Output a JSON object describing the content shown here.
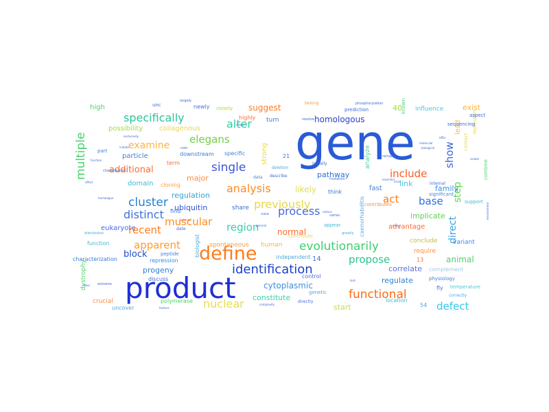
{
  "words": [
    {
      "text": "gene",
      "color": "#2a5bd7"
    },
    {
      "text": "product",
      "color": "#1f2fd6"
    },
    {
      "text": "define",
      "color": "#ff7a1a"
    },
    {
      "text": "identification",
      "color": "#1a3fd0"
    },
    {
      "text": "evolutionarily",
      "color": "#3fcf6f"
    },
    {
      "text": "functional",
      "color": "#ff6a12"
    },
    {
      "text": "specifically",
      "color": "#2cc49a"
    },
    {
      "text": "multiple",
      "color": "#48d16d"
    },
    {
      "text": "elegans",
      "color": "#6fd13f"
    },
    {
      "text": "alter",
      "color": "#2ccf9e"
    },
    {
      "text": "single",
      "color": "#3a56d6"
    },
    {
      "text": "analysis",
      "color": "#ff8a26"
    },
    {
      "text": "process",
      "color": "#4767d9"
    },
    {
      "text": "previously",
      "color": "#e6d84a"
    },
    {
      "text": "cluster",
      "color": "#1f7fd6"
    },
    {
      "text": "distinct",
      "color": "#3d6fe0"
    },
    {
      "text": "muscular",
      "color": "#ff8c1a"
    },
    {
      "text": "region",
      "color": "#34d0b0"
    },
    {
      "text": "recent",
      "color": "#ff7a1a"
    },
    {
      "text": "apparent",
      "color": "#ff9a2e"
    },
    {
      "text": "nuclear",
      "color": "#e8dd4f"
    },
    {
      "text": "propose",
      "color": "#2ec28b"
    },
    {
      "text": "defect",
      "color": "#33c9ea"
    },
    {
      "text": "include",
      "color": "#ff5a1f"
    },
    {
      "text": "act",
      "color": "#ff7a12"
    },
    {
      "text": "base",
      "color": "#2c6fdf"
    },
    {
      "text": "examine",
      "color": "#ffb23d"
    },
    {
      "text": "additional",
      "color": "#ff6b2e"
    },
    {
      "text": "show",
      "color": "#3a6ad8"
    },
    {
      "text": "step",
      "color": "#5ad64a"
    },
    {
      "text": "direct",
      "color": "#3aa2e0"
    },
    {
      "text": "homologous",
      "color": "#2c40c8"
    },
    {
      "text": "suggest",
      "color": "#ff7a26"
    },
    {
      "text": "pathway",
      "color": "#2c6fd6"
    },
    {
      "text": "cytoplasmic",
      "color": "#3c8ee0"
    },
    {
      "text": "regulate",
      "color": "#2f80d0"
    },
    {
      "text": "block",
      "color": "#1f4ccc"
    },
    {
      "text": "progeny",
      "color": "#2b7fd6"
    },
    {
      "text": "animal",
      "color": "#4dd166"
    },
    {
      "text": "correlate",
      "color": "#5c6de0"
    },
    {
      "text": "major",
      "color": "#ff8a3c"
    },
    {
      "text": "regulation",
      "color": "#2fa6cf"
    },
    {
      "text": "ubiquitin",
      "color": "#2a53d0"
    },
    {
      "text": "normal",
      "color": "#ff6a2e"
    },
    {
      "text": "likely",
      "color": "#e0dc5a"
    },
    {
      "text": "link",
      "color": "#45c7d0"
    },
    {
      "text": "implicate",
      "color": "#5dd14e"
    },
    {
      "text": "family",
      "color": "#3c8fe0"
    },
    {
      "text": "exist",
      "color": "#ffb23d"
    },
    {
      "text": "high",
      "color": "#4fd06a"
    },
    {
      "text": "possibility",
      "color": "#9fdc3f"
    },
    {
      "text": "collagenous",
      "color": "#e8d84f"
    },
    {
      "text": "particle",
      "color": "#3f7fd6"
    },
    {
      "text": "domain",
      "color": "#3fb8d6"
    },
    {
      "text": "eukaryote",
      "color": "#4a6ae0"
    },
    {
      "text": "constitute",
      "color": "#3fd0a8"
    },
    {
      "text": "start",
      "color": "#c9d85a"
    },
    {
      "text": "advantage",
      "color": "#ff6a2e"
    },
    {
      "text": "human",
      "color": "#ffb23d"
    },
    {
      "text": "independent",
      "color": "#4aa8e0"
    },
    {
      "text": "spontaneous",
      "color": "#ff9a3c"
    },
    {
      "text": "fast",
      "color": "#3f7fd6"
    },
    {
      "text": "40",
      "color": "#a8d83a"
    },
    {
      "text": "14",
      "color": "#3f6fd6"
    },
    {
      "text": "54",
      "color": "#4aa8e0"
    },
    {
      "text": "21",
      "color": "#3f6fd6"
    },
    {
      "text": "13",
      "color": "#ff6a2e"
    },
    {
      "text": "turn",
      "color": "#3a7ad6"
    },
    {
      "text": "influence",
      "color": "#4ac7d6"
    },
    {
      "text": "lead",
      "color": "#ffb23d"
    },
    {
      "text": "caenorhabditis",
      "color": "#5fa8e0"
    },
    {
      "text": "analyze",
      "color": "#4fcf9a"
    },
    {
      "text": "strong",
      "color": "#e8d84f"
    },
    {
      "text": "share",
      "color": "#3a6ad8"
    },
    {
      "text": "require",
      "color": "#ff8a3c"
    },
    {
      "text": "conclude",
      "color": "#c9b84a"
    },
    {
      "text": "variant",
      "color": "#3f8ae0"
    },
    {
      "text": "complement",
      "color": "#9fc8e0"
    },
    {
      "text": "fly",
      "color": "#4a6ae0"
    },
    {
      "text": "location",
      "color": "#3fb8d6"
    },
    {
      "text": "crucial",
      "color": "#ff8a3c"
    },
    {
      "text": "polymerase",
      "color": "#4fd06a"
    },
    {
      "text": "uncover",
      "color": "#4aa8e0"
    },
    {
      "text": "dystrophy",
      "color": "#4fd06a"
    },
    {
      "text": "characterization",
      "color": "#3a7ad6"
    },
    {
      "text": "function",
      "color": "#3fb8d6"
    },
    {
      "text": "repression",
      "color": "#2f8ae0"
    },
    {
      "text": "discuss",
      "color": "#3a6ad8"
    },
    {
      "text": "biologist",
      "color": "#4aa8e0"
    },
    {
      "text": "peptide",
      "color": "#3f7fd6"
    },
    {
      "text": "cloning",
      "color": "#ff9a3c"
    },
    {
      "text": "term",
      "color": "#ff6a2e"
    },
    {
      "text": "downstream",
      "color": "#3a7ad6"
    },
    {
      "text": "specific",
      "color": "#3f7fd6"
    },
    {
      "text": "newly",
      "color": "#4a6ae0"
    },
    {
      "text": "highly",
      "color": "#ff6a2e"
    },
    {
      "text": "closely",
      "color": "#a8d83a"
    },
    {
      "text": "unc",
      "color": "#3a6ad8"
    },
    {
      "text": "part",
      "color": "#3f7fd6"
    },
    {
      "text": "contribute",
      "color": "#e8d84f"
    },
    {
      "text": "contributes",
      "color": "#ff8a3c"
    },
    {
      "text": "find",
      "color": "#3a6ad8"
    },
    {
      "text": "genetic",
      "color": "#4aa8e0"
    },
    {
      "text": "control",
      "color": "#4a6ae0"
    },
    {
      "text": "appear",
      "color": "#3fb8d6"
    },
    {
      "text": "think",
      "color": "#3f6fd6"
    },
    {
      "text": "physiology",
      "color": "#3f7fd6"
    },
    {
      "text": "temperature",
      "color": "#4ac7d6"
    },
    {
      "text": "support",
      "color": "#3fb8d6"
    },
    {
      "text": "significant",
      "color": "#3f8ae0"
    },
    {
      "text": "internal",
      "color": "#3a6ad8"
    },
    {
      "text": "combine",
      "color": "#4fd06a"
    },
    {
      "text": "dependent",
      "color": "#e8d84f"
    },
    {
      "text": "contact",
      "color": "#e8d84f"
    },
    {
      "text": "sequencing",
      "color": "#3a6ad8"
    },
    {
      "text": "aspect",
      "color": "#3a6ad8"
    },
    {
      "text": "prediction",
      "color": "#3a6ad8"
    },
    {
      "text": "phosphorylation",
      "color": "#3a6ad8"
    },
    {
      "text": "known",
      "color": "#4fd06a"
    },
    {
      "text": "describe",
      "color": "#3a6ad8"
    },
    {
      "text": "data",
      "color": "#3f7fd6"
    },
    {
      "text": "deletion",
      "color": "#4aa8e0"
    },
    {
      "text": "initially",
      "color": "#3a6ad8"
    },
    {
      "text": "belong",
      "color": "#ff9a3c"
    },
    {
      "text": "resolve",
      "color": "#3a6ad8"
    },
    {
      "text": "mutation",
      "color": "#3a6ad8"
    },
    {
      "text": "remain",
      "color": "#3a6ad8"
    },
    {
      "text": "greatly",
      "color": "#4aa8e0"
    },
    {
      "text": "varies",
      "color": "#3a6ad8"
    },
    {
      "text": "largely",
      "color": "#3a6ad8"
    },
    {
      "text": "date",
      "color": "#3a6ad8"
    },
    {
      "text": "lateral",
      "color": "#ff6a2e"
    },
    {
      "text": "coin",
      "color": "#3a6ad8"
    },
    {
      "text": "directly",
      "color": "#4a6ae0"
    },
    {
      "text": "correctly",
      "color": "#4aa8e0"
    },
    {
      "text": "situ",
      "color": "#3a6ad8"
    },
    {
      "text": "homologue",
      "color": "#3a6ad8"
    },
    {
      "text": "distribution",
      "color": "#4aa8e0"
    },
    {
      "text": "characteristic",
      "color": "#3a6ad8"
    },
    {
      "text": "exclusively",
      "color": "#3a6ad8"
    },
    {
      "text": "extreme",
      "color": "#3a6ad8"
    },
    {
      "text": "initiate",
      "color": "#3a6ad8"
    },
    {
      "text": "molecular",
      "color": "#3a6ad8"
    },
    {
      "text": "biological",
      "color": "#3a6ad8"
    },
    {
      "text": "elegans",
      "color": "#3a6ad8"
    },
    {
      "text": "feature",
      "color": "#3a6ad8"
    },
    {
      "text": "complexity",
      "color": "#3a6ad8"
    },
    {
      "text": "essential",
      "color": "#3a6ad8"
    },
    {
      "text": "stable",
      "color": "#3a6ad8"
    },
    {
      "text": "affect",
      "color": "#3a6ad8"
    },
    {
      "text": "class",
      "color": "#3a6ad8"
    },
    {
      "text": "arise",
      "color": "#3a6ad8"
    },
    {
      "text": "environment",
      "color": "#3a6ad8"
    },
    {
      "text": "function",
      "color": "#3a6ad8"
    },
    {
      "text": "general",
      "color": "#3a6ad8"
    },
    {
      "text": "lack",
      "color": "#3a6ad8"
    },
    {
      "text": "mono",
      "color": "#3a6ad8"
    },
    {
      "text": "reduce",
      "color": "#3a6ad8"
    },
    {
      "text": "isolate",
      "color": "#3a6ad8"
    }
  ]
}
